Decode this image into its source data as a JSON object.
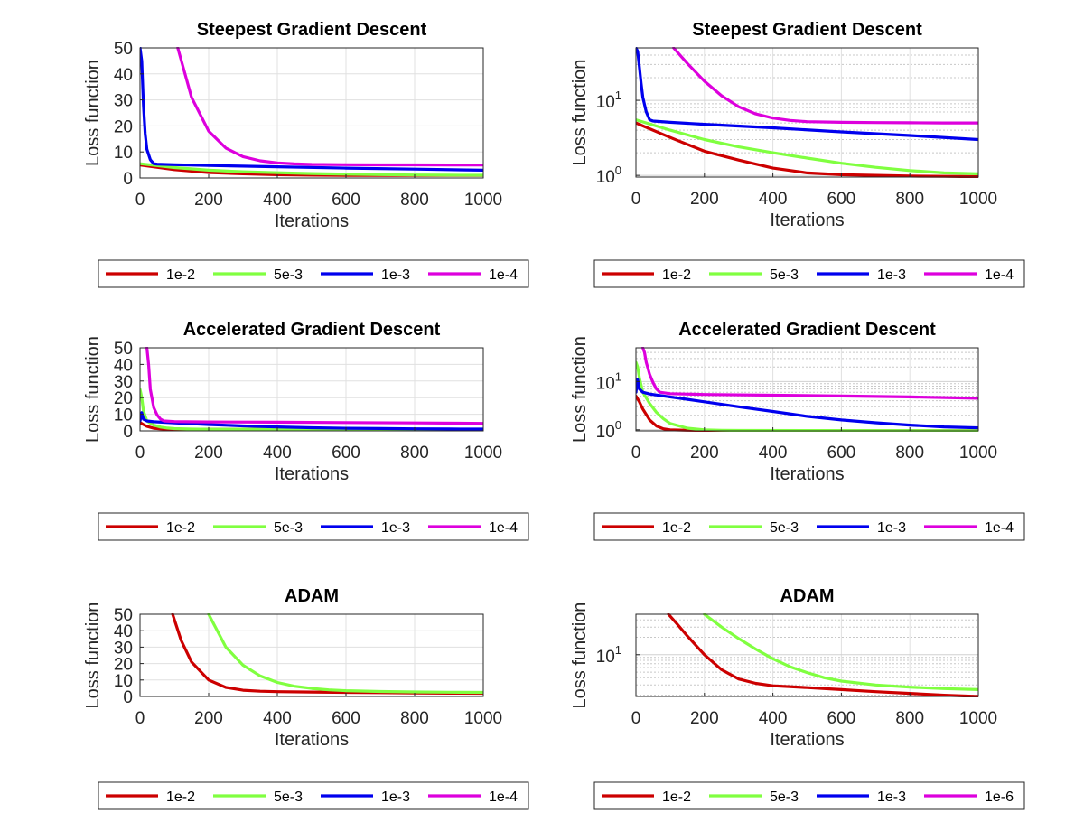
{
  "colors": {
    "1e-2": "#cc0000",
    "5e-3": "#80ff40",
    "1e-3": "#0000ee",
    "1e-4": "#dd00dd",
    "1e-6": "#dd00dd"
  },
  "chart_data": [
    {
      "type": "line",
      "title": "Steepest Gradient Descent",
      "xlabel": "Iterations",
      "ylabel": "Loss function",
      "yscale": "linear",
      "xlim": [
        0,
        1000
      ],
      "ylim": [
        0,
        50
      ],
      "xticks": [
        "0",
        "200",
        "400",
        "600",
        "800",
        "1000"
      ],
      "yticks": [
        "0",
        "10",
        "20",
        "30",
        "40",
        "50"
      ],
      "grid": true,
      "legend": [
        "1e-2",
        "5e-3",
        "1e-3",
        "1e-4"
      ],
      "legend_position": "below",
      "series": [
        {
          "name": "1e-2",
          "x": [
            0,
            100,
            200,
            300,
            400,
            500,
            600,
            700,
            800,
            900,
            1000
          ],
          "y": [
            5.0,
            3.2,
            2.1,
            1.6,
            1.25,
            1.08,
            1.02,
            1.0,
            0.98,
            0.97,
            0.96
          ]
        },
        {
          "name": "5e-3",
          "x": [
            0,
            100,
            200,
            300,
            400,
            500,
            600,
            700,
            800,
            900,
            1000
          ],
          "y": [
            5.5,
            4.0,
            3.0,
            2.4,
            2.0,
            1.7,
            1.45,
            1.28,
            1.16,
            1.08,
            1.05
          ]
        },
        {
          "name": "1e-3",
          "x": [
            0,
            5,
            10,
            15,
            20,
            30,
            40,
            50,
            100,
            200,
            400,
            600,
            800,
            1000
          ],
          "y": [
            50,
            45,
            28,
            17,
            11,
            7,
            5.5,
            5.3,
            5.1,
            4.8,
            4.3,
            3.8,
            3.4,
            3.0
          ]
        },
        {
          "name": "1e-4",
          "x": [
            110,
            150,
            200,
            250,
            300,
            350,
            400,
            450,
            500,
            600,
            700,
            800,
            900,
            1000
          ],
          "y": [
            50,
            31,
            18,
            11.5,
            8.2,
            6.6,
            5.8,
            5.4,
            5.2,
            5.1,
            5.05,
            5.02,
            5.0,
            5.0
          ]
        }
      ]
    },
    {
      "type": "line",
      "title": "Steepest Gradient Descent",
      "xlabel": "Iterations",
      "ylabel": "Loss function",
      "yscale": "log",
      "xlim": [
        0,
        1000
      ],
      "ylim": [
        0.95,
        50
      ],
      "xticks": [
        "0",
        "200",
        "400",
        "600",
        "800",
        "1000"
      ],
      "yticks": [
        "10^0",
        "10^1"
      ],
      "grid": true,
      "legend": [
        "1e-2",
        "5e-3",
        "1e-3",
        "1e-4"
      ],
      "legend_position": "below",
      "series": [
        {
          "name": "1e-2",
          "x": [
            0,
            100,
            200,
            300,
            400,
            500,
            600,
            700,
            800,
            900,
            1000
          ],
          "y": [
            5.0,
            3.2,
            2.1,
            1.6,
            1.25,
            1.08,
            1.02,
            1.0,
            0.98,
            0.97,
            0.96
          ]
        },
        {
          "name": "5e-3",
          "x": [
            0,
            100,
            200,
            300,
            400,
            500,
            600,
            700,
            800,
            900,
            1000
          ],
          "y": [
            5.5,
            4.0,
            3.0,
            2.4,
            2.0,
            1.7,
            1.45,
            1.28,
            1.16,
            1.08,
            1.05
          ]
        },
        {
          "name": "1e-3",
          "x": [
            0,
            5,
            10,
            15,
            20,
            30,
            40,
            50,
            100,
            200,
            400,
            600,
            800,
            1000
          ],
          "y": [
            50,
            45,
            28,
            17,
            11,
            7,
            5.5,
            5.3,
            5.1,
            4.8,
            4.3,
            3.8,
            3.4,
            3.0
          ]
        },
        {
          "name": "1e-4",
          "x": [
            110,
            150,
            200,
            250,
            300,
            350,
            400,
            450,
            500,
            600,
            700,
            800,
            900,
            1000
          ],
          "y": [
            50,
            31,
            18,
            11.5,
            8.2,
            6.6,
            5.8,
            5.4,
            5.2,
            5.1,
            5.05,
            5.02,
            5.0,
            5.0
          ]
        }
      ]
    },
    {
      "type": "line",
      "title": "Accelerated Gradient Descent",
      "xlabel": "Iterations",
      "ylabel": "Loss function",
      "yscale": "linear",
      "xlim": [
        0,
        1000
      ],
      "ylim": [
        0,
        50
      ],
      "xticks": [
        "0",
        "200",
        "400",
        "600",
        "800",
        "1000"
      ],
      "yticks": [
        "0",
        "10",
        "20",
        "30",
        "40",
        "50"
      ],
      "grid": true,
      "legend": [
        "1e-2",
        "5e-3",
        "1e-3",
        "1e-4"
      ],
      "legend_position": "below",
      "series": [
        {
          "name": "1e-2",
          "x": [
            0,
            10,
            20,
            40,
            60,
            80,
            100,
            150,
            200,
            300,
            1000
          ],
          "y": [
            5.0,
            3.8,
            2.7,
            1.6,
            1.2,
            1.05,
            1.0,
            0.98,
            0.97,
            0.96,
            0.96
          ]
        },
        {
          "name": "5e-3",
          "x": [
            0,
            5,
            10,
            20,
            40,
            60,
            80,
            100,
            150,
            200,
            250,
            300,
            1000
          ],
          "y": [
            25,
            20,
            12,
            6.0,
            3.5,
            2.3,
            1.7,
            1.35,
            1.08,
            1.0,
            0.98,
            0.97,
            0.96
          ]
        },
        {
          "name": "1e-3",
          "x": [
            0,
            5,
            10,
            20,
            40,
            100,
            200,
            300,
            400,
            500,
            600,
            700,
            800,
            900,
            1000
          ],
          "y": [
            6,
            11,
            7,
            6,
            5.5,
            4.8,
            3.8,
            3.0,
            2.4,
            1.9,
            1.6,
            1.4,
            1.25,
            1.15,
            1.1
          ]
        },
        {
          "name": "1e-4",
          "x": [
            20,
            25,
            30,
            40,
            50,
            60,
            70,
            100,
            200,
            400,
            600,
            800,
            1000
          ],
          "y": [
            50,
            40,
            25,
            14,
            9.5,
            7.0,
            6.0,
            5.6,
            5.4,
            5.2,
            5.0,
            4.8,
            4.5
          ]
        }
      ]
    },
    {
      "type": "line",
      "title": "Accelerated Gradient Descent",
      "xlabel": "Iterations",
      "ylabel": "Loss function",
      "yscale": "log",
      "xlim": [
        0,
        1000
      ],
      "ylim": [
        0.95,
        50
      ],
      "xticks": [
        "0",
        "200",
        "400",
        "600",
        "800",
        "1000"
      ],
      "yticks": [
        "10^0",
        "10^1"
      ],
      "grid": true,
      "legend": [
        "1e-2",
        "5e-3",
        "1e-3",
        "1e-4"
      ],
      "legend_position": "below",
      "series": [
        {
          "name": "1e-2",
          "x": [
            0,
            10,
            20,
            40,
            60,
            80,
            100,
            150,
            200,
            300,
            1000
          ],
          "y": [
            5.0,
            3.8,
            2.7,
            1.6,
            1.2,
            1.05,
            1.0,
            0.98,
            0.97,
            0.96,
            0.96
          ]
        },
        {
          "name": "5e-3",
          "x": [
            0,
            5,
            10,
            20,
            40,
            60,
            80,
            100,
            150,
            200,
            250,
            300,
            1000
          ],
          "y": [
            25,
            20,
            12,
            6.0,
            3.5,
            2.3,
            1.7,
            1.35,
            1.08,
            1.0,
            0.98,
            0.97,
            0.96
          ]
        },
        {
          "name": "1e-3",
          "x": [
            0,
            5,
            10,
            20,
            40,
            100,
            200,
            300,
            400,
            500,
            600,
            700,
            800,
            900,
            1000
          ],
          "y": [
            6,
            11,
            7,
            6,
            5.5,
            4.8,
            3.8,
            3.0,
            2.4,
            1.9,
            1.6,
            1.4,
            1.25,
            1.15,
            1.1
          ]
        },
        {
          "name": "1e-4",
          "x": [
            20,
            25,
            30,
            40,
            50,
            60,
            70,
            100,
            200,
            400,
            600,
            800,
            1000
          ],
          "y": [
            50,
            40,
            25,
            14,
            9.5,
            7.0,
            6.0,
            5.6,
            5.4,
            5.2,
            5.0,
            4.8,
            4.5
          ]
        }
      ]
    },
    {
      "type": "line",
      "title": "ADAM",
      "xlabel": "Iterations",
      "ylabel": "Loss function",
      "yscale": "linear",
      "xlim": [
        0,
        1000
      ],
      "ylim": [
        0,
        50
      ],
      "xticks": [
        "0",
        "200",
        "400",
        "600",
        "800",
        "1000"
      ],
      "yticks": [
        "0",
        "10",
        "20",
        "30",
        "40",
        "50"
      ],
      "grid": true,
      "legend": [
        "1e-2",
        "5e-3",
        "1e-3",
        "1e-4"
      ],
      "legend_position": "below",
      "series": [
        {
          "name": "1e-2",
          "x": [
            95,
            120,
            150,
            200,
            250,
            300,
            350,
            400,
            500,
            600,
            700,
            800,
            900,
            1000
          ],
          "y": [
            50,
            34,
            21,
            10,
            5.5,
            3.8,
            3.2,
            2.9,
            2.7,
            2.5,
            2.3,
            2.15,
            2.0,
            1.9
          ]
        },
        {
          "name": "5e-3",
          "x": [
            200,
            250,
            300,
            350,
            400,
            450,
            500,
            550,
            600,
            700,
            800,
            900,
            1000
          ],
          "y": [
            50,
            30,
            19,
            12.5,
            8.5,
            6.2,
            4.9,
            4.0,
            3.5,
            3.0,
            2.75,
            2.6,
            2.5
          ]
        }
      ]
    },
    {
      "type": "line",
      "title": "ADAM",
      "xlabel": "Iterations",
      "ylabel": "Loss function",
      "yscale": "log",
      "xlim": [
        0,
        1000
      ],
      "ylim": [
        1.9,
        50
      ],
      "xticks": [
        "0",
        "200",
        "400",
        "600",
        "800",
        "1000"
      ],
      "yticks": [
        "10^1"
      ],
      "grid": true,
      "legend": [
        "1e-2",
        "5e-3",
        "1e-3",
        "1e-6"
      ],
      "legend_position": "below",
      "series": [
        {
          "name": "1e-2",
          "x": [
            95,
            120,
            150,
            200,
            250,
            300,
            350,
            400,
            500,
            600,
            700,
            800,
            900,
            1000
          ],
          "y": [
            50,
            34,
            21,
            10,
            5.5,
            3.8,
            3.2,
            2.9,
            2.7,
            2.5,
            2.3,
            2.15,
            2.0,
            1.9
          ]
        },
        {
          "name": "5e-3",
          "x": [
            200,
            250,
            300,
            350,
            400,
            450,
            500,
            550,
            600,
            700,
            800,
            900,
            1000
          ],
          "y": [
            50,
            30,
            19,
            12.5,
            8.5,
            6.2,
            4.9,
            4.0,
            3.5,
            3.0,
            2.75,
            2.6,
            2.5
          ]
        }
      ]
    }
  ]
}
